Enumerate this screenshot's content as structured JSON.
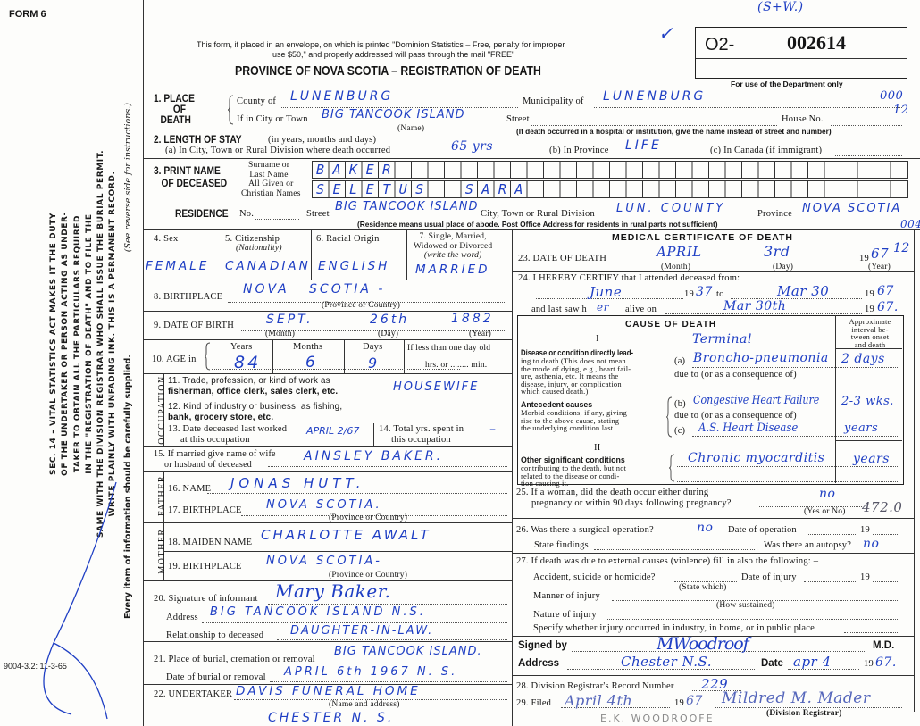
{
  "header": {
    "form_label": "FORM 6",
    "notice_line1": "This form, if placed in an envelope, on which is printed \"Dominion Statistics – Free, penalty for improper",
    "notice_line2": "use $50,\" and properly addressed will pass through the mail \"FREE\"",
    "title": "PROVINCE OF NOVA SCOTIA – REGISTRATION OF DEATH",
    "reg_prefix": "O2-",
    "reg_number": "002614",
    "dept_only": "For use of the Department only",
    "annot_top": "(S+W.)",
    "annot_code1": "000",
    "annot_code2": "12",
    "annot_code3": "004",
    "form_code": "9004-3.2: 11-3-65"
  },
  "sidebar": {
    "lines": [
      "SEC. 14 – VITAL STATISTICS ACT MAKES IT THE DUTY",
      "OF THE UNDERTAKER OR PERSON ACTING AS UNDER-",
      "TAKER TO OBTAIN ALL THE PARTICULARS REQUIRED",
      "IN THE \"REGISTRATION OF DEATH\" AND TO FILE THE",
      "SAME WITH THE DIVISION REGISTRAR WHO SHALL ISSUE THE BURIAL PERMIT.",
      "WRITE PLAINLY WITH UNFADING INK. THIS IS A PERMANENT RECORD."
    ],
    "every_item": "Every item of information should be carefully supplied.",
    "see_reverse": "(See reverse side for instructions.)"
  },
  "place": {
    "label1": "1. PLACE",
    "label2": "OF",
    "label3": "DEATH",
    "county_label": "County of",
    "county": "LUNENBURG",
    "municipality_label": "Municipality of",
    "municipality": "LUNENBURG",
    "city_label": "If in City or Town",
    "city": "BIG TANCOOK ISLAND",
    "street_label": "Street",
    "house_label": "House No.",
    "name_note": "(Name)",
    "hospital_note": "(If death occurred in a hospital or institution, give the name instead of street and number)"
  },
  "stay": {
    "label": "2. LENGTH OF STAY",
    "label_note": "(in years, months and days)",
    "a_label": "(a) In City, Town or Rural Division where death occurred",
    "a_value": "65 yrs",
    "b_label": "(b) In Province",
    "b_value": "LIFE",
    "c_label": "(c) In Canada (if immigrant)"
  },
  "name": {
    "label1": "3. PRINT NAME",
    "label2": "OF DECEASED",
    "surname_label1": "Surname or",
    "surname_label2": "Last Name",
    "given_label1": "All Given or",
    "given_label2": "Christian Names",
    "surname": "BAKER",
    "given": "SELETUS  SARA"
  },
  "residence": {
    "label": "RESIDENCE",
    "no_label": "No.",
    "street_label": "Street",
    "street": "BIG TANCOOK ISLAND",
    "city_label": "City, Town or Rural Division",
    "city": "LUN. COUNTY",
    "province_label": "Province",
    "province": "NOVA SCOTIA",
    "note": "(Residence means usual place of abode. Post Office Address for residents in rural parts not sufficient)"
  },
  "personal": {
    "sex_label": "4. Sex",
    "sex": "FEMALE",
    "citizenship_label": "5. Citizenship",
    "citizenship_note": "(Nationality)",
    "citizenship": "CANADIAN",
    "racial_label": "6. Racial Origin",
    "racial": "ENGLISH",
    "marital_label1": "7. Single, Married,",
    "marital_label2": "Widowed or Divorced",
    "marital_label3": "(write the word)",
    "marital": "MARRIED",
    "birthplace_label": "8. BIRTHPLACE",
    "birthplace": "NOVA   SCOTIA -",
    "province_note": "(Province or Country)",
    "dob_label": "9. DATE OF BIRTH",
    "dob_month": "SEPT.",
    "dob_day": "26th",
    "dob_year": "1882",
    "month_note": "(Month)",
    "day_note": "(Day)",
    "year_note": "(Year)",
    "age_label": "10. AGE in",
    "years_label": "Years",
    "months_label": "Months",
    "days_label": "Days",
    "age_years": "84",
    "age_months": "6",
    "age_days": "9",
    "less_day_label": "If less than one day old",
    "hrs_min": "hrs. or ........ min."
  },
  "occupation": {
    "side_label": "OCCUPATION",
    "q11a": "11. Trade, profession, or kind of work as",
    "q11b": "fisherman, office clerk, sales clerk, etc.",
    "trade": "HOUSEWIFE",
    "q12a": "12. Kind of industry or business, as fishing,",
    "q12b": "bank, grocery store, etc.",
    "q13a": "13. Date deceased last worked",
    "q13b": "at this occupation",
    "last_worked": "APRIL 2/67",
    "q14a": "14. Total yrs. spent in",
    "q14b": "this occupation",
    "total_years": "–"
  },
  "family": {
    "q15a": "15. If married give name of wife",
    "q15b": "or husband of deceased",
    "spouse": "AINSLEY   BAKER.",
    "father_label": "FATHER",
    "q16": "16. NAME",
    "father_name": "JONAS   HUTT.",
    "q17": "17. BIRTHPLACE",
    "father_birthplace": "NOVA   SCOTIA.",
    "mother_label": "MOTHER",
    "q18": "18. MAIDEN NAME",
    "mother_name": "CHARLOTTE   AWALT",
    "q19": "19. BIRTHPLACE",
    "mother_birthplace": "NOVA   SCOTIA-",
    "province_note": "(Province or Country)"
  },
  "informant": {
    "q20": "20. Signature of informant",
    "signature": "Mary Baker.",
    "address_label": "Address",
    "address": "BIG TANCOOK ISLAND  N.S.",
    "relationship_label": "Relationship to deceased",
    "relationship": "DAUGHTER-IN-LAW."
  },
  "burial": {
    "q21": "21. Place of burial, cremation or removal",
    "place": "BIG TANCOOK ISLAND.",
    "date_label": "Date of burial or removal",
    "date": "APRIL 6th 1967  N. S.",
    "q22": "22. UNDERTAKER",
    "undertaker": "DAVIS  FUNERAL  HOME",
    "undertaker_note": "(Name and address)",
    "undertaker_address": "CHESTER  N. S."
  },
  "medical": {
    "heading": "MEDICAL CERTIFICATE OF DEATH",
    "q23": "23. DATE OF DEATH",
    "death_month": "APRIL",
    "death_day": "3rd",
    "century": "19",
    "death_year": "67",
    "annot_12": "12",
    "month_note": "(Month)",
    "day_note": "(Day)",
    "year_note": "(Year)",
    "q24": "24. I HEREBY CERTIFY that I attended deceased from:",
    "from_month": "June",
    "from_year": "37",
    "to_label": "to",
    "to_date": "Mar 30",
    "to_year": "67",
    "last_saw_label": "and last saw h",
    "last_saw_pronoun": "er",
    "alive_on": "alive on",
    "last_saw_date": "Mar 30th",
    "last_saw_year": "67."
  },
  "cause": {
    "heading": "CAUSE OF DEATH",
    "interval_header": [
      "Approximate",
      "interval be-",
      "tween onset",
      "and death"
    ],
    "part1": "I",
    "direct_title": "Disease or condition directly lead-",
    "direct_desc": [
      "ing to death (This does not mean",
      "the mode of dying, e.g., heart fail-",
      "ure, asthenia, etc. It means the",
      "disease, injury, or complication",
      "which caused death.)"
    ],
    "terminal": "Terminal",
    "a_label": "(a)",
    "a_value": "Broncho-pneumonia",
    "a_interval": "2 days",
    "due_to": "due to (or as a consequence of)",
    "antecedent_title": "Antecedent causes",
    "antecedent_desc": [
      "Morbid conditions, if any, giving",
      "rise to the above cause, stating",
      "the underlying condition last."
    ],
    "b_label": "(b)",
    "b_value": "Congestive Heart Failure",
    "b_interval": "2-3 wks.",
    "c_label": "(c)",
    "c_value": "A.S. Heart Disease",
    "c_interval": "years",
    "part2": "II",
    "other_title": "Other significant conditions",
    "other_desc": [
      "contributing to the death, but not",
      "related to the disease or condi-",
      "tion causing it."
    ],
    "other_value": "Chronic myocarditis",
    "other_interval": "years"
  },
  "questions": {
    "q25a": "25. If a woman, did the death occur either during",
    "q25b": "pregnancy or within 90 days following pregnancy?",
    "pregnancy": "no",
    "yes_no": "(Yes or No)",
    "annot_code": "472.0",
    "q26": "26. Was there a surgical operation?",
    "operation": "no",
    "op_date_label": "Date of operation",
    "op_year_label": "19",
    "findings_label": "State findings",
    "autopsy_label": "Was there an autopsy?",
    "autopsy": "no",
    "q27": "27. If death was due to external causes (violence) fill in also the following: –",
    "accident_label": "Accident, suicide or homicide?",
    "injury_date_label": "Date of injury",
    "injury_year_label": "19",
    "state_which": "(State which)",
    "manner_label": "Manner of injury",
    "how_sustained": "(How sustained)",
    "nature_label": "Nature of injury",
    "specify_label": "Specify whether injury occurred in industry, in home, or in public place"
  },
  "signoff": {
    "signed_label": "Signed by",
    "signature": "MWoodroof",
    "md": "M.D.",
    "address_label": "Address",
    "address": "Chester  N.S.",
    "date_label": "Date",
    "date": "apr 4",
    "century": "19",
    "year": "67.",
    "q28": "28. Division Registrar's Record Number",
    "record_number": "229",
    "q29": "29. Filed",
    "filed_date": "April 4th",
    "filed_century": "19",
    "filed_year": "67",
    "registrar_signature": "Mildred M. Mader",
    "registrar_note": "(Division Registrar)",
    "pencil_name": "E.K. WOODROOFE"
  },
  "colors": {
    "ink": "#1f3fc4",
    "print": "#151515",
    "paper": "#fdfdfb",
    "pencil": "#8a8a8a"
  }
}
